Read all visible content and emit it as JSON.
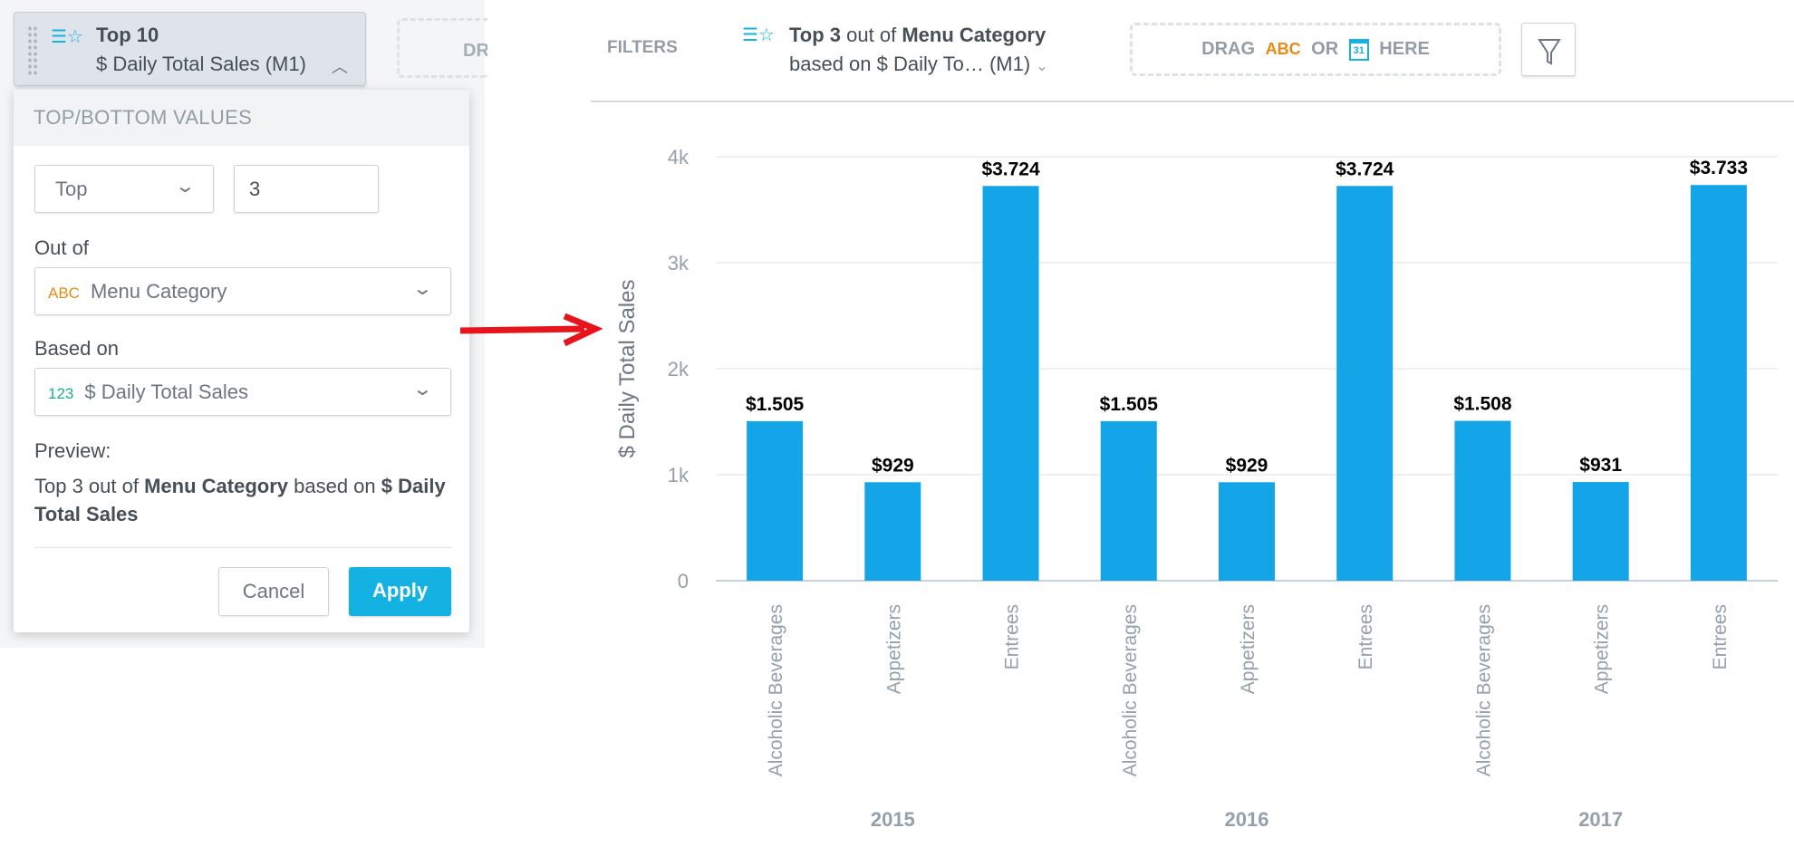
{
  "topchip": {
    "title": "Top 10",
    "subtitle": "$ Daily Total Sales (M1)",
    "icon": "ranking-filter-icon"
  },
  "partial_drop": "DR",
  "panel": {
    "header": "TOP/BOTTOM VALUES",
    "direction": "Top",
    "count": "3",
    "out_of_label": "Out of",
    "out_of_type": "ABC",
    "out_of_value": "Menu Category",
    "based_on_label": "Based on",
    "based_on_type": "123",
    "based_on_value": "$ Daily Total Sales",
    "preview_label": "Preview:",
    "preview": {
      "p1": "Top 3 out of ",
      "b1": "Menu Category",
      "p2": " based on ",
      "b2": "$ Daily Total Sales"
    },
    "cancel": "Cancel",
    "apply": "Apply"
  },
  "filterbar": {
    "label": "FILTERS",
    "chip": {
      "b1": "Top 3",
      "p1": " out of ",
      "b2": "Menu Category",
      "line2": "based on $ Daily To…  (M1)"
    },
    "drop": {
      "drag": "DRAG",
      "abc": "ABC",
      "or": "OR",
      "cal": "31",
      "here": "HERE"
    }
  },
  "colors": {
    "bar": "#14a5e9",
    "accent": "#14b2e2",
    "arrow": "#e8141b",
    "abc": "#e98a14",
    "num": "#19b47a"
  },
  "chart_data": {
    "type": "bar",
    "ylabel": "$ Daily Total Sales",
    "ylim": [
      0,
      4000
    ],
    "yticks": [
      "0",
      "1k",
      "2k",
      "3k",
      "4k"
    ],
    "grid": true,
    "groups": [
      "2015",
      "2016",
      "2017"
    ],
    "categories": [
      "Alcoholic Beverages",
      "Appetizers",
      "Entrees",
      "Alcoholic Beverages",
      "Appetizers",
      "Entrees",
      "Alcoholic Beverages",
      "Appetizers",
      "Entrees"
    ],
    "values": [
      1505,
      929,
      3724,
      1505,
      929,
      3724,
      1508,
      931,
      3733
    ],
    "labels": [
      "$1.505",
      "$929",
      "$3.724",
      "$1.505",
      "$929",
      "$3.724",
      "$1.508",
      "$931",
      "$3.733"
    ]
  }
}
